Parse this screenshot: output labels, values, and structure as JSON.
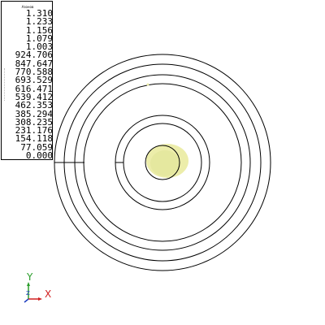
{
  "legend": {
    "title": "Азонов",
    "values": [
      "1.310",
      "1.233",
      "1.156",
      "1.079",
      "1.003",
      "924.706",
      "847.647",
      "770.588",
      "693.529",
      "616.471",
      "539.412",
      "462.353",
      "385.294",
      "308.235",
      "231.176",
      "154.118",
      "77.059",
      "0.000"
    ]
  },
  "axes": {
    "y_label": "Y",
    "x_label": "X",
    "z_label": "Z",
    "y_color": "#2a9d2a",
    "x_color": "#d02020",
    "z_color": "#2040c0"
  },
  "model": {
    "line_color": "#000000",
    "core_color": "#ecedaa",
    "ring_count": 5
  }
}
